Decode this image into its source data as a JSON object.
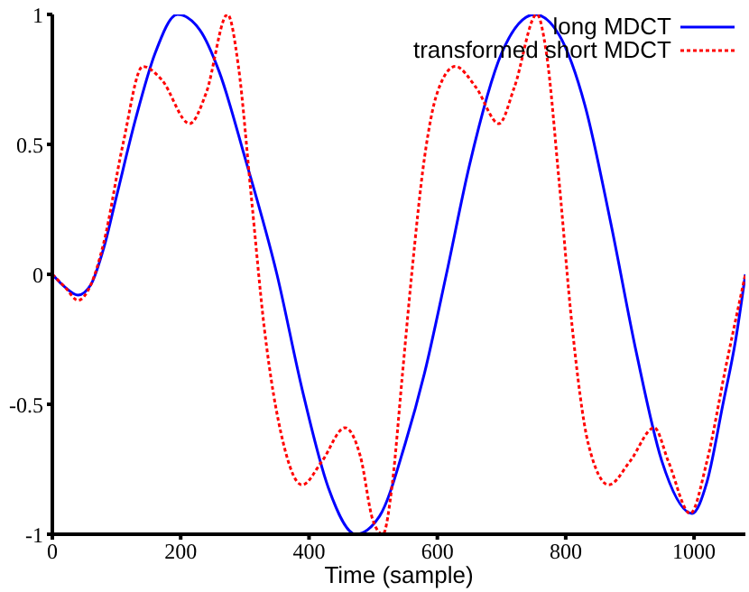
{
  "chart_data": {
    "type": "line",
    "xlabel": "Time (sample)",
    "xlim": [
      0,
      1080
    ],
    "xticks": [
      0,
      200,
      400,
      600,
      800,
      1000
    ],
    "ylim": [
      -1,
      1
    ],
    "yticks": [
      -1,
      -0.5,
      0,
      0.5,
      1
    ],
    "grid": false,
    "legend": "top right",
    "marker": "none",
    "series": [
      {
        "name": "long MDCT",
        "color": "#0000ff",
        "line_style": "solid",
        "x": [
          0,
          20,
          40,
          60,
          80,
          100,
          130,
          160,
          195,
          230,
          260,
          300,
          350,
          390,
          430,
          473,
          510,
          550,
          580,
          614,
          650,
          700,
          752,
          790,
          830,
          870,
          910,
          950,
          997,
          1020,
          1045,
          1065,
          1080
        ],
        "values": [
          0,
          -0.05,
          -0.08,
          -0.04,
          0.1,
          0.3,
          0.6,
          0.85,
          1,
          0.94,
          0.78,
          0.45,
          0,
          -0.45,
          -0.82,
          -1,
          -0.93,
          -0.65,
          -0.38,
          0,
          0.42,
          0.85,
          1,
          0.92,
          0.65,
          0.2,
          -0.3,
          -0.72,
          -0.92,
          -0.8,
          -0.5,
          -0.25,
          0
        ]
      },
      {
        "name": "transformed short MDCT",
        "color": "#ff0000",
        "line_style": "dotted",
        "x": [
          0,
          20,
          40,
          60,
          80,
          110,
          141,
          170,
          214,
          240,
          273,
          290,
          310,
          330,
          360,
          389,
          420,
          456,
          480,
          500,
          515,
          530,
          545,
          560,
          580,
          600,
          628,
          660,
          696,
          720,
          755,
          770,
          790,
          810,
          835,
          867,
          900,
          938,
          960,
          994,
          1020,
          1050,
          1080
        ],
        "values": [
          0,
          -0.05,
          -0.1,
          -0.04,
          0.12,
          0.5,
          0.8,
          0.75,
          0.58,
          0.7,
          1,
          0.8,
          0.3,
          -0.2,
          -0.65,
          -0.81,
          -0.72,
          -0.59,
          -0.7,
          -0.95,
          -1,
          -0.8,
          -0.4,
          0,
          0.45,
          0.7,
          0.8,
          0.72,
          0.58,
          0.72,
          1,
          0.85,
          0.35,
          -0.2,
          -0.65,
          -0.81,
          -0.72,
          -0.59,
          -0.72,
          -0.92,
          -0.72,
          -0.35,
          0
        ]
      }
    ]
  }
}
